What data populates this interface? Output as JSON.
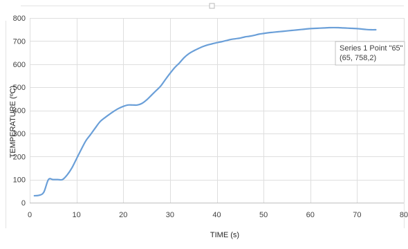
{
  "chart_data": {
    "type": "line",
    "xlabel": "TIME (s)",
    "ylabel": "TEMPERATURE (ºC)",
    "xlim": [
      0,
      80
    ],
    "ylim": [
      0,
      800
    ],
    "x_ticks": [
      "0",
      "10",
      "20",
      "30",
      "40",
      "50",
      "60",
      "70",
      "80"
    ],
    "y_ticks": [
      "0",
      "100",
      "200",
      "300",
      "400",
      "500",
      "600",
      "700",
      "800"
    ],
    "grid": true,
    "legend": "none",
    "line_color": "#6a9fd8",
    "series": [
      {
        "x": [
          1,
          2,
          3,
          4,
          5,
          6,
          7,
          8,
          9,
          10,
          11,
          12,
          13,
          14,
          15,
          16,
          17,
          18,
          19,
          20,
          21,
          22,
          23,
          24,
          25,
          26,
          27,
          28,
          29,
          30,
          31,
          32,
          33,
          34,
          35,
          36,
          37,
          38,
          39,
          40,
          41,
          42,
          43,
          44,
          45,
          46,
          47,
          48,
          49,
          50,
          51,
          52,
          53,
          54,
          55,
          56,
          57,
          58,
          59,
          60,
          61,
          62,
          63,
          64,
          65,
          66,
          67,
          68,
          69,
          70,
          71,
          72,
          73,
          74
        ],
        "y": [
          30,
          32,
          45,
          100,
          100,
          100,
          100,
          120,
          150,
          190,
          230,
          268,
          295,
          323,
          350,
          367,
          382,
          396,
          408,
          417,
          423,
          423,
          423,
          430,
          445,
          465,
          485,
          505,
          533,
          560,
          585,
          605,
          628,
          645,
          657,
          667,
          676,
          683,
          688,
          693,
          697,
          702,
          707,
          710,
          713,
          718,
          721,
          725,
          730,
          733,
          736,
          738,
          740,
          742,
          744,
          746,
          748,
          750,
          752,
          754,
          755,
          756,
          757,
          758,
          758.2,
          758,
          757,
          756,
          755,
          754,
          752,
          750,
          749,
          749
        ]
      }
    ],
    "tooltip": {
      "line1": "Series 1 Point \"65\"",
      "line2": "(65, 758,2)"
    }
  }
}
